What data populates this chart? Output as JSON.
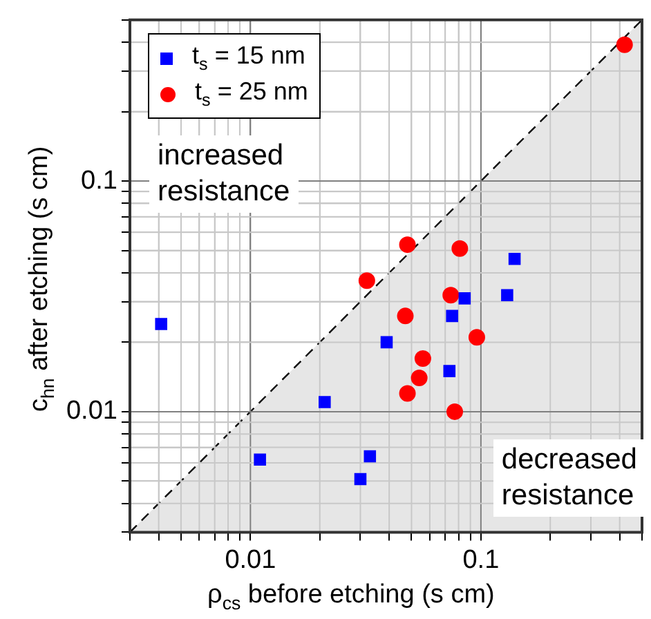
{
  "chart_data": {
    "type": "scatter",
    "xlabel": "ρ$_{cs}$ before etching (s cm)",
    "ylabel": "c$_{hn}$ after etching (s cm)",
    "log": "xy",
    "grid": true,
    "legend": "top left",
    "xlim": [
      0.003,
      0.5
    ],
    "ylim": [
      0.003,
      0.5
    ],
    "xticks": [
      {
        "value": 0.003,
        "label": null
      },
      {
        "value": 0.004,
        "label": null
      },
      {
        "value": 0.005,
        "label": null
      },
      {
        "value": 0.006,
        "label": null
      },
      {
        "value": 0.007,
        "label": null
      },
      {
        "value": 0.008,
        "label": null
      },
      {
        "value": 0.009,
        "label": null
      },
      0.01,
      {
        "value": 0.02,
        "label": null
      },
      {
        "value": 0.03,
        "label": null
      },
      {
        "value": 0.04,
        "label": null
      },
      {
        "value": 0.05,
        "label": null
      },
      {
        "value": 0.06,
        "label": null
      },
      {
        "value": 0.07,
        "label": null
      },
      {
        "value": 0.08,
        "label": null
      },
      {
        "value": 0.09,
        "label": null
      },
      0.1,
      {
        "value": 0.2,
        "label": null
      },
      {
        "value": 0.3,
        "label": null
      },
      {
        "value": 0.4,
        "label": null
      },
      {
        "value": 0.5,
        "label": null
      }
    ],
    "yticks": [
      {
        "value": 0.003,
        "label": null
      },
      {
        "value": 0.004,
        "label": null
      },
      {
        "value": 0.005,
        "label": null
      },
      {
        "value": 0.006,
        "label": null
      },
      {
        "value": 0.007,
        "label": null
      },
      {
        "value": 0.008,
        "label": null
      },
      {
        "value": 0.009,
        "label": null
      },
      0.01,
      {
        "value": 0.02,
        "label": null
      },
      {
        "value": 0.03,
        "label": null
      },
      {
        "value": 0.04,
        "label": null
      },
      {
        "value": 0.05,
        "label": null
      },
      {
        "value": 0.06,
        "label": null
      },
      {
        "value": 0.07,
        "label": null
      },
      {
        "value": 0.08,
        "label": null
      },
      {
        "value": 0.09,
        "label": null
      },
      0.1,
      {
        "value": 0.2,
        "label": null
      },
      {
        "value": 0.3,
        "label": null
      },
      {
        "value": 0.4,
        "label": null
      },
      {
        "value": 0.5,
        "label": null
      }
    ],
    "series": [
      {
        "type": "area",
        "color": "#e6e6e6",
        "line_style": "dashed",
        "marker": "none",
        "x": [
          0.003,
          0.5
        ],
        "values": [
          0.003,
          0.5
        ]
      },
      {
        "name": "t$_{s}$ = 15 nm",
        "color": "#0000ff",
        "marker": "square",
        "x": [
          0.0041,
          0.021,
          0.011,
          0.033,
          0.03,
          0.039,
          0.073,
          0.075,
          0.085,
          0.13,
          0.14
        ],
        "values": [
          0.024,
          0.011,
          0.0062,
          0.0064,
          0.0051,
          0.02,
          0.015,
          0.026,
          0.031,
          0.032,
          0.046
        ]
      },
      {
        "name": "t$_{s}$ = 25 nm",
        "color": "#ff0000",
        "marker": "circle",
        "x": [
          0.42,
          0.048,
          0.081,
          0.032,
          0.074,
          0.047,
          0.096,
          0.056,
          0.054,
          0.048,
          0.077
        ],
        "values": [
          0.39,
          0.053,
          0.051,
          0.037,
          0.032,
          0.026,
          0.021,
          0.017,
          0.014,
          0.012,
          0.01
        ]
      }
    ],
    "annotations": [
      "increased resistance",
      "decreased resistance"
    ]
  }
}
